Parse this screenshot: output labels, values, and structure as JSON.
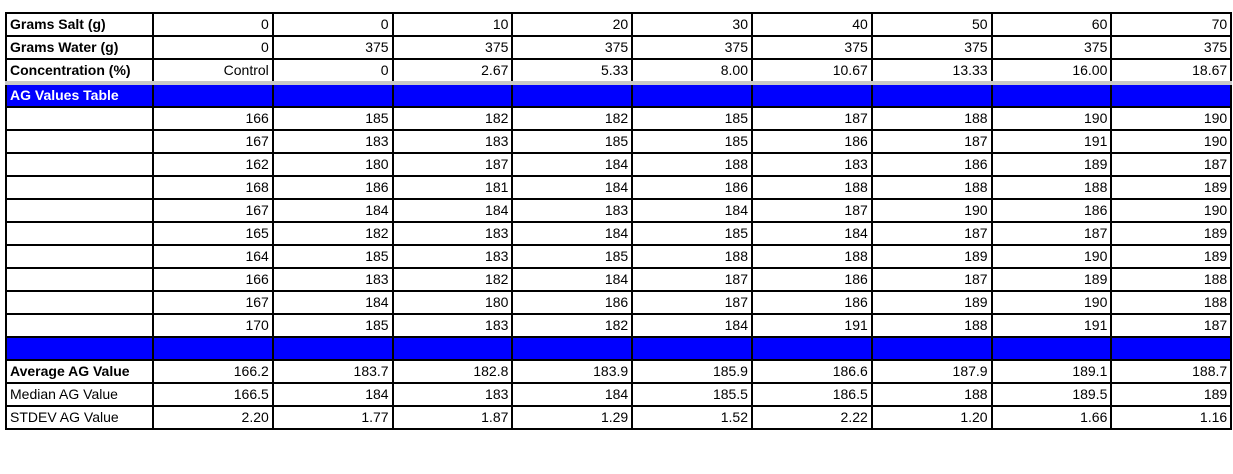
{
  "colors": {
    "header_fill": "#0000ff",
    "header_text": "#ffffff",
    "separator": "#c8c8c8"
  },
  "params": [
    {
      "label": "Grams Salt (g)",
      "values": [
        "0",
        "0",
        "10",
        "20",
        "30",
        "40",
        "50",
        "60",
        "70"
      ]
    },
    {
      "label": "Grams Water (g)",
      "values": [
        "0",
        "375",
        "375",
        "375",
        "375",
        "375",
        "375",
        "375",
        "375"
      ]
    },
    {
      "label": "Concentration (%)",
      "values": [
        "Control",
        "0",
        "2.67",
        "5.33",
        "8.00",
        "10.67",
        "13.33",
        "16.00",
        "18.67"
      ]
    }
  ],
  "ag_table": {
    "title": "AG Values Table",
    "rows": [
      [
        "166",
        "185",
        "182",
        "182",
        "185",
        "187",
        "188",
        "190",
        "190"
      ],
      [
        "167",
        "183",
        "183",
        "185",
        "185",
        "186",
        "187",
        "191",
        "190"
      ],
      [
        "162",
        "180",
        "187",
        "184",
        "188",
        "183",
        "186",
        "189",
        "187"
      ],
      [
        "168",
        "186",
        "181",
        "184",
        "186",
        "188",
        "188",
        "188",
        "189"
      ],
      [
        "167",
        "184",
        "184",
        "183",
        "184",
        "187",
        "190",
        "186",
        "190"
      ],
      [
        "165",
        "182",
        "183",
        "184",
        "185",
        "184",
        "187",
        "187",
        "189"
      ],
      [
        "164",
        "185",
        "183",
        "185",
        "188",
        "188",
        "189",
        "190",
        "189"
      ],
      [
        "166",
        "183",
        "182",
        "184",
        "187",
        "186",
        "187",
        "189",
        "188"
      ],
      [
        "167",
        "184",
        "180",
        "186",
        "187",
        "186",
        "189",
        "190",
        "188"
      ],
      [
        "170",
        "185",
        "183",
        "182",
        "184",
        "191",
        "188",
        "191",
        "187"
      ]
    ]
  },
  "stats": [
    {
      "label": "Average AG Value",
      "bold": true,
      "values": [
        "166.2",
        "183.7",
        "182.8",
        "183.9",
        "185.9",
        "186.6",
        "187.9",
        "189.1",
        "188.7"
      ]
    },
    {
      "label": "Median AG Value",
      "bold": false,
      "values": [
        "166.5",
        "184",
        "183",
        "184",
        "185.5",
        "186.5",
        "188",
        "189.5",
        "189"
      ]
    },
    {
      "label": "STDEV AG Value",
      "bold": false,
      "values": [
        "2.20",
        "1.77",
        "1.87",
        "1.29",
        "1.52",
        "2.22",
        "1.20",
        "1.66",
        "1.16"
      ]
    }
  ]
}
